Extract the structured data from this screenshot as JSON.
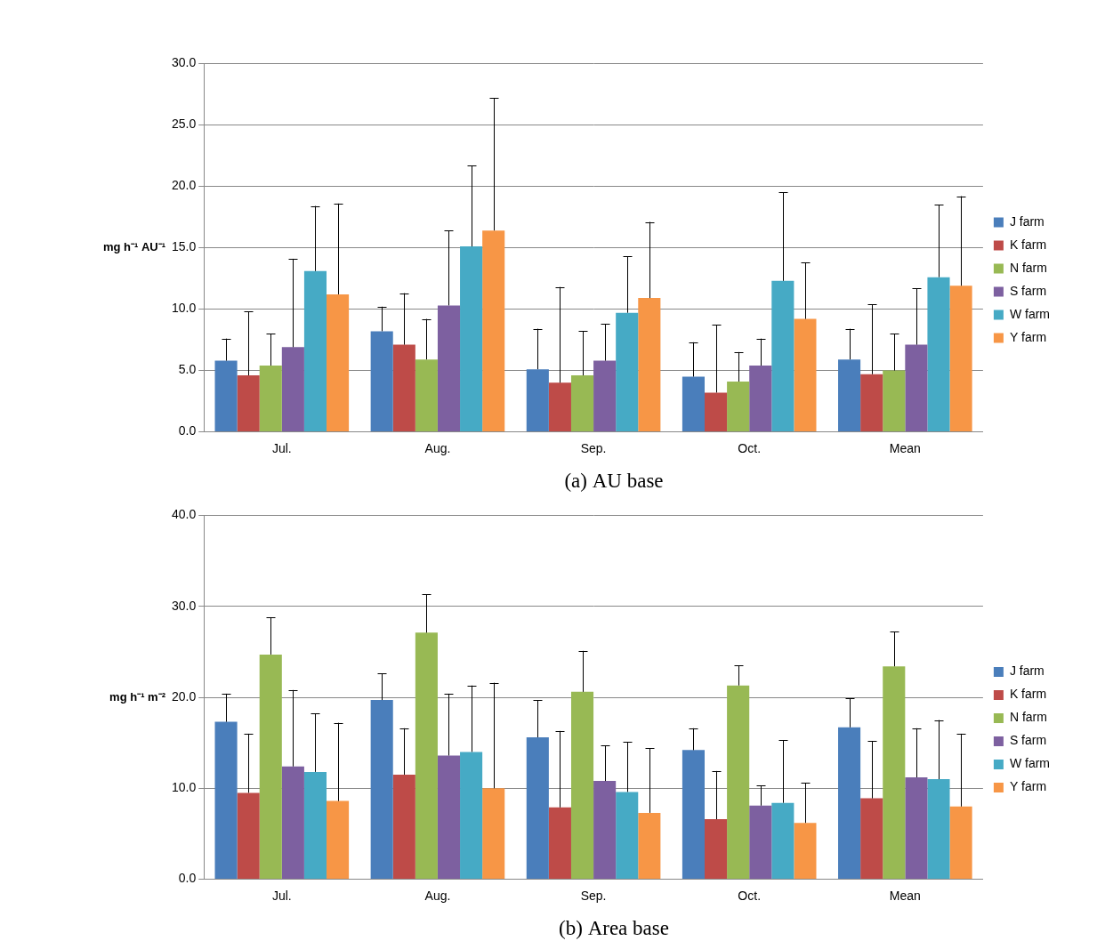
{
  "chart_data": [
    {
      "type": "bar",
      "title": "(a) AU base",
      "ylabel": "mg h⁻¹ AU⁻¹",
      "categories": [
        "Jul.",
        "Aug.",
        "Sep.",
        "Oct.",
        "Mean"
      ],
      "series": [
        {
          "name": "J farm",
          "color": "#4a7ebb",
          "values": [
            5.8,
            8.2,
            5.1,
            4.5,
            5.9
          ],
          "errors": [
            1.8,
            2.0,
            3.3,
            2.8,
            2.5
          ]
        },
        {
          "name": "K farm",
          "color": "#be4b48",
          "values": [
            4.6,
            7.1,
            4.0,
            3.2,
            4.7
          ],
          "errors": [
            5.2,
            4.2,
            7.8,
            5.5,
            5.7
          ]
        },
        {
          "name": "N farm",
          "color": "#98b954",
          "values": [
            5.4,
            5.9,
            4.6,
            4.1,
            5.0
          ],
          "errors": [
            2.6,
            3.3,
            3.6,
            2.4,
            3.0
          ]
        },
        {
          "name": "S farm",
          "color": "#7d60a0",
          "values": [
            6.9,
            10.3,
            5.8,
            5.4,
            7.1
          ],
          "errors": [
            7.2,
            6.1,
            3.0,
            2.2,
            4.6
          ]
        },
        {
          "name": "W farm",
          "color": "#46aac5",
          "values": [
            13.1,
            15.1,
            9.7,
            12.3,
            12.6
          ],
          "errors": [
            5.3,
            6.6,
            4.6,
            7.2,
            5.9
          ]
        },
        {
          "name": "Y farm",
          "color": "#f79646",
          "values": [
            11.2,
            16.4,
            10.9,
            9.2,
            11.9
          ],
          "errors": [
            7.4,
            10.8,
            6.2,
            4.6,
            7.3
          ]
        }
      ],
      "ylim": [
        0,
        30
      ],
      "yticks": [
        {
          "value": 0,
          "label": "0.0"
        },
        {
          "value": 5,
          "label": "5.0"
        },
        {
          "value": 10,
          "label": "10.0"
        },
        {
          "value": 15,
          "label": "15.0"
        },
        {
          "value": 20,
          "label": "20.0"
        },
        {
          "value": 25,
          "label": "25.0"
        },
        {
          "value": 30,
          "label": "30.0"
        }
      ],
      "grid": true,
      "legend": "right"
    },
    {
      "type": "bar",
      "title": "(b) Area base",
      "ylabel": "mg h⁻¹ m⁻²",
      "categories": [
        "Jul.",
        "Aug.",
        "Sep.",
        "Oct.",
        "Mean"
      ],
      "series": [
        {
          "name": "J farm",
          "color": "#4a7ebb",
          "values": [
            17.3,
            19.7,
            15.6,
            14.2,
            16.7
          ],
          "errors": [
            3.1,
            2.9,
            4.1,
            2.4,
            3.2
          ]
        },
        {
          "name": "K farm",
          "color": "#be4b48",
          "values": [
            9.5,
            11.5,
            7.9,
            6.6,
            8.9
          ],
          "errors": [
            6.5,
            5.1,
            8.4,
            5.3,
            6.3
          ]
        },
        {
          "name": "N farm",
          "color": "#98b954",
          "values": [
            24.7,
            27.1,
            20.6,
            21.3,
            23.4
          ],
          "errors": [
            4.1,
            4.2,
            4.5,
            2.2,
            3.8
          ]
        },
        {
          "name": "S farm",
          "color": "#7d60a0",
          "values": [
            12.4,
            13.6,
            10.8,
            8.1,
            11.2
          ],
          "errors": [
            8.4,
            6.8,
            3.9,
            2.2,
            5.4
          ]
        },
        {
          "name": "W farm",
          "color": "#46aac5",
          "values": [
            11.8,
            14.0,
            9.6,
            8.4,
            11.0
          ],
          "errors": [
            6.4,
            7.3,
            5.5,
            6.9,
            6.5
          ]
        },
        {
          "name": "Y farm",
          "color": "#f79646",
          "values": [
            8.6,
            10.0,
            7.3,
            6.2,
            8.0
          ],
          "errors": [
            8.6,
            11.6,
            7.1,
            4.4,
            8.0
          ]
        }
      ],
      "ylim": [
        0,
        40
      ],
      "yticks": [
        {
          "value": 0,
          "label": "0.0"
        },
        {
          "value": 10,
          "label": "10.0"
        },
        {
          "value": 20,
          "label": "20.0"
        },
        {
          "value": 30,
          "label": "30.0"
        },
        {
          "value": 40,
          "label": "40.0"
        }
      ],
      "grid": true,
      "legend": "right"
    }
  ]
}
